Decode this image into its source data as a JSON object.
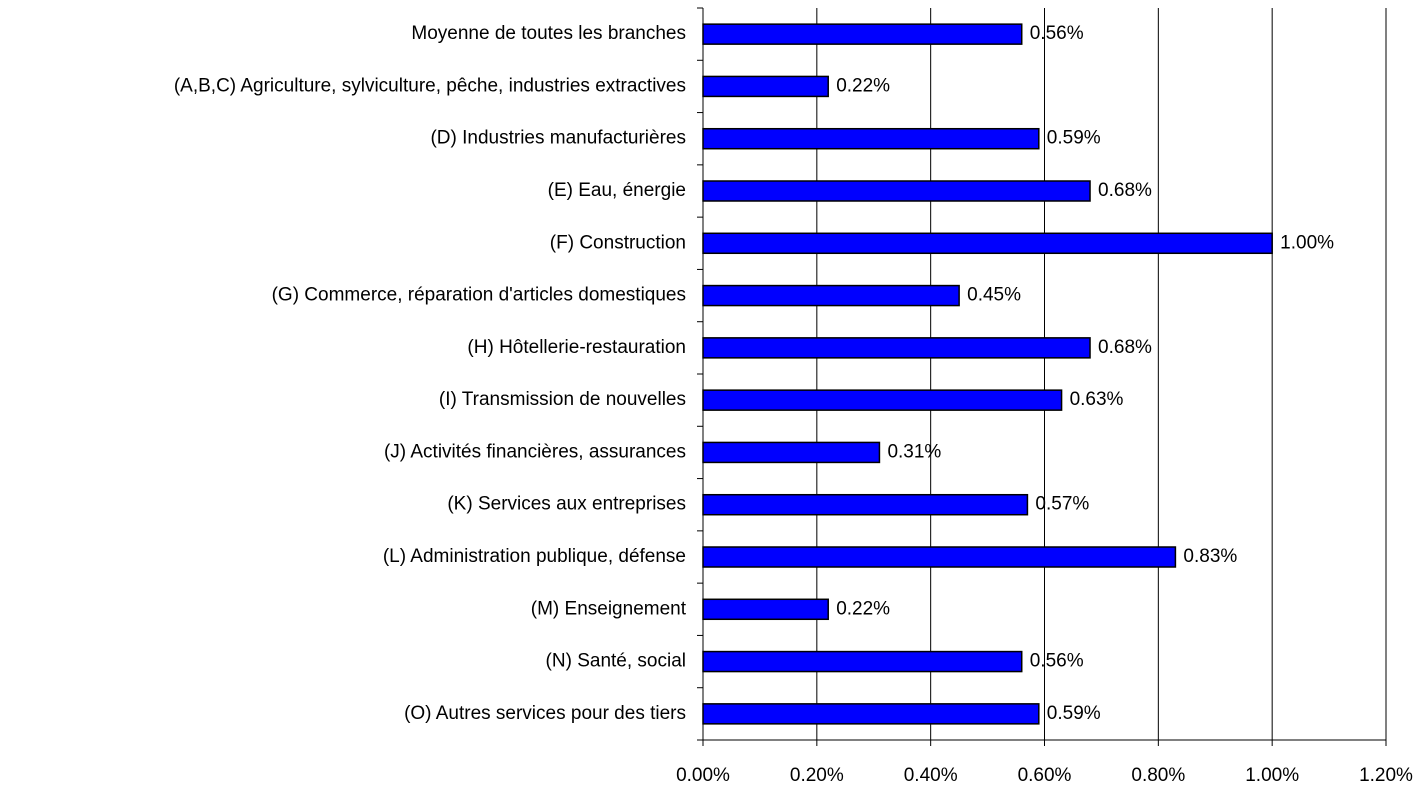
{
  "chart_data": {
    "type": "bar",
    "orientation": "horizontal",
    "categories": [
      "Moyenne de toutes les branches",
      "(A,B,C) Agriculture, sylviculture, pêche, industries extractives",
      "(D) Industries manufacturières",
      "(E) Eau, énergie",
      "(F) Construction",
      "(G) Commerce, réparation d'articles domestiques",
      "(H) Hôtellerie-restauration",
      "(I) Transmission de nouvelles",
      "(J) Activités financières, assurances",
      "(K) Services aux entreprises",
      "(L) Administration publique, défense",
      "(M) Enseignement",
      "(N) Santé, social",
      "(O) Autres services pour des tiers"
    ],
    "values": [
      0.56,
      0.22,
      0.59,
      0.68,
      1.0,
      0.45,
      0.68,
      0.63,
      0.31,
      0.57,
      0.83,
      0.22,
      0.56,
      0.59
    ],
    "value_labels": [
      "0.56%",
      "0.22%",
      "0.59%",
      "0.68%",
      "1.00%",
      "0.45%",
      "0.68%",
      "0.63%",
      "0.31%",
      "0.57%",
      "0.83%",
      "0.22%",
      "0.56%",
      "0.59%"
    ],
    "color": "#0000ff",
    "xlim": [
      0,
      1.2
    ],
    "xticks": [
      {
        "value": 0,
        "label": "0.00%"
      },
      {
        "value": 0.2,
        "label": "0.20%"
      },
      {
        "value": 0.4,
        "label": "0.40%"
      },
      {
        "value": 0.6,
        "label": "0.60%"
      },
      {
        "value": 0.8,
        "label": "0.80%"
      },
      {
        "value": 1.0,
        "label": "1.00%"
      },
      {
        "value": 1.2,
        "label": "1.20%"
      }
    ],
    "grid": true
  }
}
